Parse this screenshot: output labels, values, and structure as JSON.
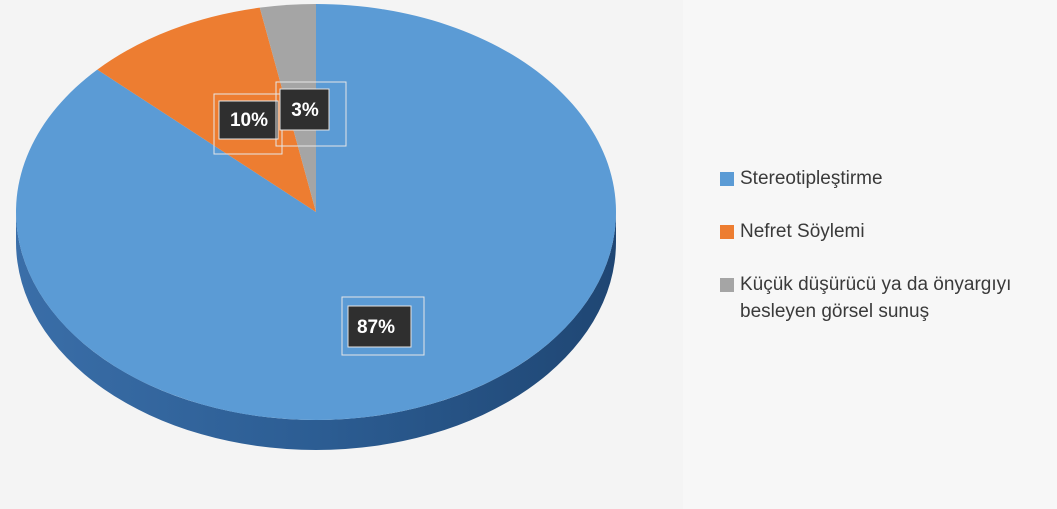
{
  "chart_data": {
    "type": "pie",
    "title": "",
    "categories": [
      "Stereotipleştirme",
      "Nefret Söylemi",
      "Küçük düşürücü ya da önyargıyı besleyen görsel sunuş"
    ],
    "values": [
      87,
      10,
      3
    ],
    "data_labels": [
      "87%",
      "10%",
      "3%"
    ],
    "colors": [
      "#5b9bd5",
      "#ed7d31",
      "#a5a5a5"
    ],
    "legend_position": "right",
    "style": "3d"
  },
  "legend": {
    "items": [
      {
        "label": "Stereotipleştirme",
        "color": "#5b9bd5"
      },
      {
        "label": "Nefret Söylemi",
        "color": "#ed7d31"
      },
      {
        "label": "Küçük düşürücü ya da önyargıyı besleyen görsel sunuş",
        "color": "#a5a5a5"
      }
    ]
  }
}
